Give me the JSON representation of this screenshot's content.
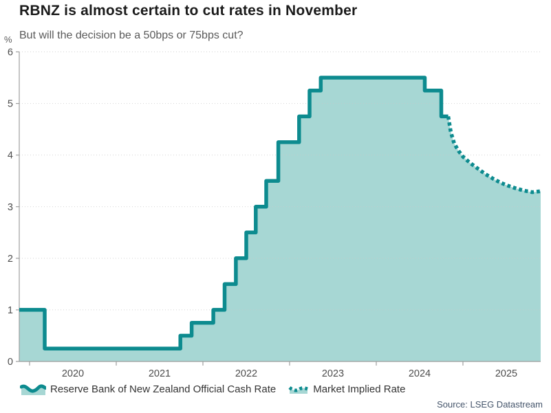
{
  "header": {
    "title": "RBNZ is almost certain to cut rates in November",
    "subtitle": "But will the decision be a 50bps or 75bps cut?"
  },
  "source": {
    "label": "Source: LSEG Datastream"
  },
  "chart_data": {
    "type": "area",
    "subtype": "step-area with dotted forecast line",
    "title": "RBNZ is almost certain to cut rates in November",
    "subtitle": "But will the decision be a 50bps or 75bps cut?",
    "ylabel": "%",
    "xlabel": "",
    "ylim": [
      0,
      6
    ],
    "xlim": [
      2019.881,
      2025.897
    ],
    "y_ticks": [
      0,
      1,
      2,
      3,
      4,
      5,
      6
    ],
    "x_tick_years": [
      2020,
      2021,
      2022,
      2023,
      2024,
      2025
    ],
    "grid": "horizontal dotted",
    "legend_position": "bottom",
    "series": [
      {
        "name": "Reserve Bank of New Zealand Official Cash Rate",
        "style": "step-solid",
        "points": [
          [
            2019.881,
            1.0
          ],
          [
            2020.175,
            0.25
          ],
          [
            2021.74,
            0.5
          ],
          [
            2021.87,
            0.75
          ],
          [
            2022.12,
            1.0
          ],
          [
            2022.25,
            1.5
          ],
          [
            2022.38,
            2.0
          ],
          [
            2022.5,
            2.5
          ],
          [
            2022.61,
            3.0
          ],
          [
            2022.73,
            3.5
          ],
          [
            2022.87,
            4.25
          ],
          [
            2023.11,
            4.75
          ],
          [
            2023.23,
            5.25
          ],
          [
            2023.36,
            5.5
          ],
          [
            2024.56,
            5.25
          ],
          [
            2024.75,
            4.75
          ]
        ],
        "end_x": 2024.83
      },
      {
        "name": "Market Implied Rate",
        "style": "dotted",
        "points": [
          [
            2024.83,
            4.75
          ],
          [
            2024.86,
            4.45
          ],
          [
            2024.9,
            4.22
          ],
          [
            2024.95,
            4.08
          ],
          [
            2025.0,
            3.97
          ],
          [
            2025.08,
            3.85
          ],
          [
            2025.17,
            3.74
          ],
          [
            2025.26,
            3.63
          ],
          [
            2025.35,
            3.54
          ],
          [
            2025.44,
            3.46
          ],
          [
            2025.53,
            3.4
          ],
          [
            2025.62,
            3.35
          ],
          [
            2025.71,
            3.31
          ],
          [
            2025.8,
            3.28
          ],
          [
            2025.897,
            3.3
          ]
        ]
      }
    ],
    "colors": {
      "line": "#0d8b8f",
      "fill": "#a7d7d4",
      "grid": "#c9c9c9",
      "axis": "#9e9e9e",
      "tick_label": "#4d4d4d",
      "title": "#1a1a1a",
      "subtitle": "#595959",
      "source_text": "#44546a"
    }
  }
}
